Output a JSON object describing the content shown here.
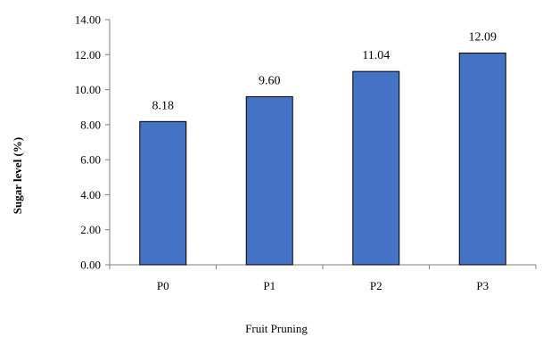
{
  "chart_data": {
    "type": "bar",
    "categories": [
      "P0",
      "P1",
      "P2",
      "P3"
    ],
    "values": [
      8.18,
      9.6,
      11.04,
      12.09
    ],
    "data_labels": [
      "8.18",
      "9.60",
      "11.04",
      "12.09"
    ],
    "xlabel": "Fruit Pruning",
    "ylabel": "Sugar level (%)",
    "ylim": [
      0,
      14
    ],
    "yticks": [
      0,
      2,
      4,
      6,
      8,
      10,
      12,
      14
    ],
    "ytick_labels": [
      "0.00",
      "2.00",
      "4.00",
      "6.00",
      "8.00",
      "10.00",
      "12.00",
      "14.00"
    ],
    "grid": false,
    "legend": "none",
    "bar_color": "#4472C4",
    "bar_edge_color": "#000000"
  }
}
